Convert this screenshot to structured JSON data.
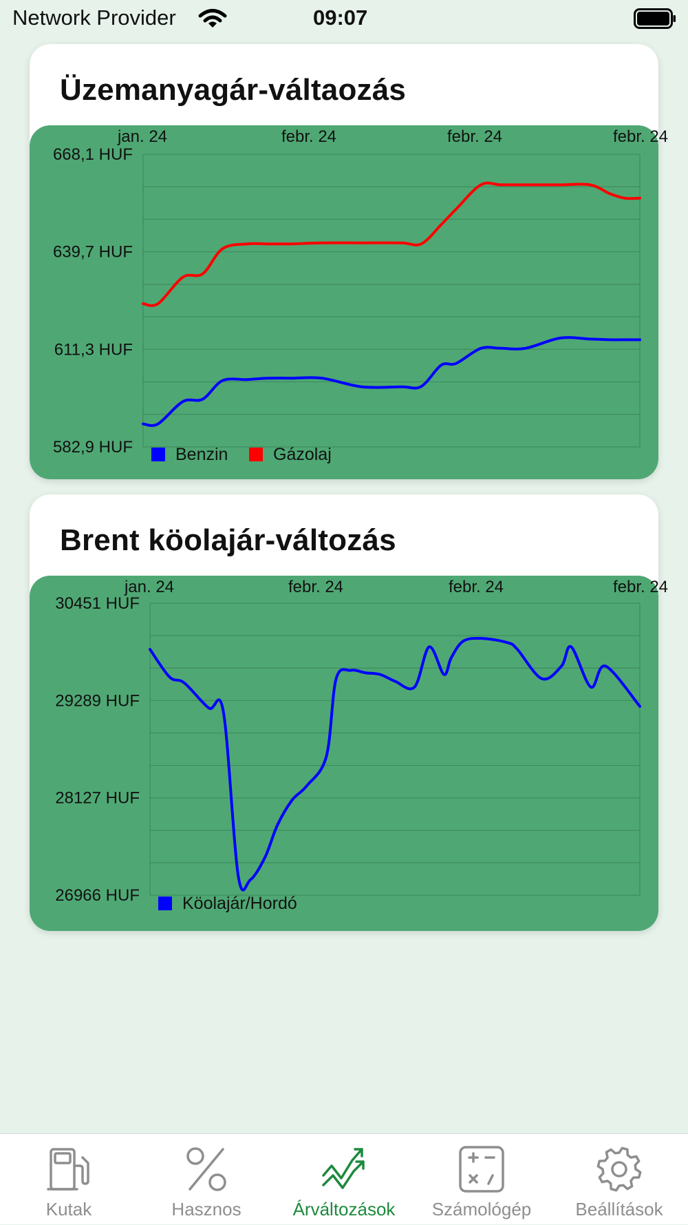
{
  "status_bar": {
    "provider": "Network Provider",
    "time": "09:07",
    "wifi_icon": "wifi-icon",
    "battery_icon": "battery-full-icon"
  },
  "fuel_card": {
    "title": "Üzemanyagár-váltaozás"
  },
  "brent_card": {
    "title": "Brent köolajár-változás"
  },
  "chart_data": [
    {
      "type": "line",
      "title": "Üzemanyagár-váltaozás",
      "x_tick_labels": [
        "jan. 24",
        "febr. 24",
        "febr. 24",
        "febr. 24"
      ],
      "y_tick_labels": [
        "668,1 HUF",
        "639,7 HUF",
        "611,3 HUF",
        "582,9 HUF"
      ],
      "ylim": [
        582.9,
        668.1
      ],
      "grid": true,
      "legend_position": "bottom-left",
      "x": [
        0,
        0.03,
        0.08,
        0.12,
        0.16,
        0.21,
        0.25,
        0.3,
        0.36,
        0.44,
        0.52,
        0.56,
        0.6,
        0.63,
        0.68,
        0.72,
        0.77,
        0.84,
        0.9,
        0.94,
        0.97,
        1
      ],
      "series": [
        {
          "name": "Benzin",
          "color": "#0000ff",
          "values": [
            589.6,
            589.6,
            596.1,
            596.8,
            602.2,
            602.5,
            602.9,
            602.9,
            602.9,
            600.4,
            600.4,
            600.5,
            606.7,
            607.2,
            611.6,
            611.6,
            611.6,
            614.6,
            614.3,
            614.1,
            614.1,
            614.1
          ]
        },
        {
          "name": "Gázolaj",
          "color": "#ff0000",
          "values": [
            624.6,
            624.6,
            632.3,
            633.3,
            640.6,
            642.0,
            642.0,
            642.0,
            642.3,
            642.3,
            642.3,
            642.0,
            647.6,
            652.1,
            659.2,
            659.2,
            659.2,
            659.2,
            659.2,
            656.6,
            655.3,
            655.3
          ]
        }
      ]
    },
    {
      "type": "line",
      "title": "Brent köolajár-változás",
      "x_tick_labels": [
        "jan. 24",
        "febr. 24",
        "febr. 24",
        "febr. 24"
      ],
      "y_tick_labels": [
        "30451 HUF",
        "29289 HUF",
        "28127 HUF",
        "26966 HUF"
      ],
      "ylim": [
        26966,
        30451
      ],
      "grid": true,
      "legend_position": "bottom-left",
      "x": [
        0,
        0.04,
        0.07,
        0.12,
        0.15,
        0.18,
        0.205,
        0.235,
        0.26,
        0.29,
        0.32,
        0.36,
        0.38,
        0.41,
        0.44,
        0.47,
        0.5,
        0.54,
        0.57,
        0.6,
        0.615,
        0.64,
        0.68,
        0.73,
        0.75,
        0.8,
        0.84,
        0.86,
        0.9,
        0.93,
        1
      ],
      "series": [
        {
          "name": "Köolajár/Hordó",
          "color": "#0000ff",
          "values": [
            29900,
            29570,
            29500,
            29200,
            29150,
            27200,
            27150,
            27420,
            27800,
            28100,
            28270,
            28620,
            29550,
            29650,
            29620,
            29600,
            29520,
            29450,
            29930,
            29600,
            29800,
            30000,
            30030,
            29980,
            29900,
            29550,
            29700,
            29930,
            29450,
            29700,
            29220
          ]
        }
      ]
    }
  ],
  "tab_bar": {
    "tabs": [
      {
        "label": "Kutak",
        "icon": "fuel-pump-icon",
        "active": false
      },
      {
        "label": "Hasznos",
        "icon": "percent-icon",
        "active": false
      },
      {
        "label": "Árváltozások",
        "icon": "chart-trend-icon",
        "active": true
      },
      {
        "label": "Számológép",
        "icon": "calculator-icon",
        "active": false
      },
      {
        "label": "Beállítások",
        "icon": "gear-icon",
        "active": false
      }
    ]
  }
}
